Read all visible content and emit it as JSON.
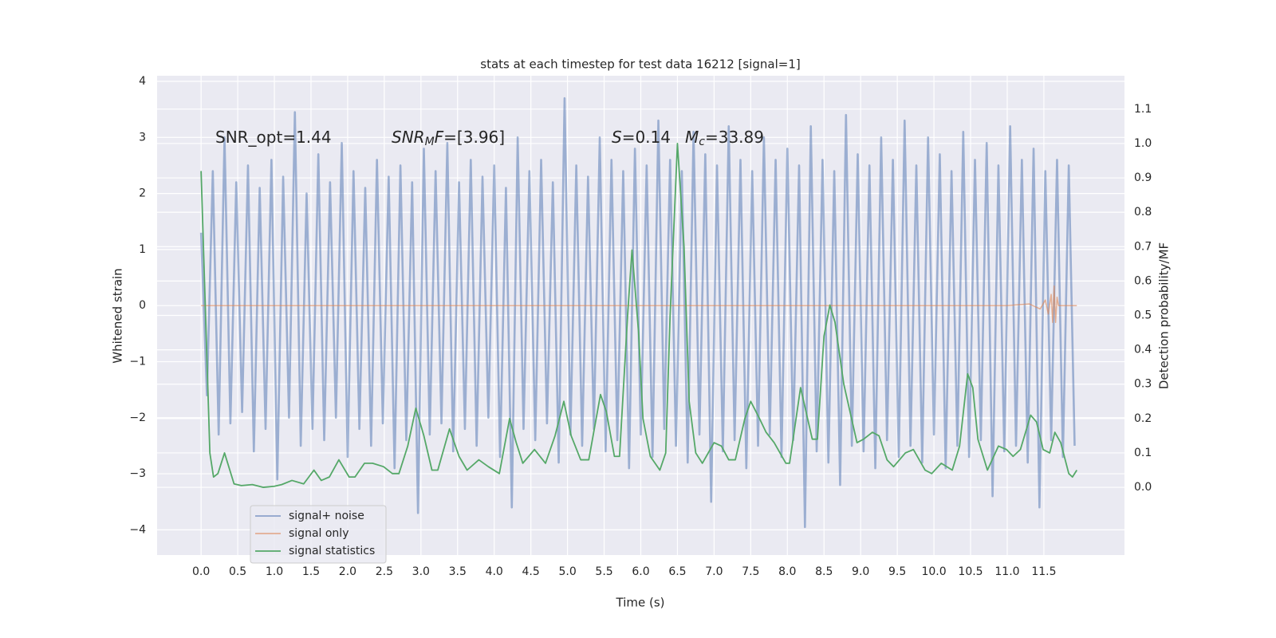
{
  "chart_data": {
    "type": "line",
    "title": "stats at each timestep for test data 16212 [signal=1]",
    "xlabel": "Time (s)",
    "ylabel": "Whitened strain",
    "y2label": "Detection probability/MF",
    "xlim": [
      -0.6,
      12.6
    ],
    "ylim": [
      -4.45,
      4.1
    ],
    "y2lim": [
      -0.197,
      1.197
    ],
    "xticks": [
      {
        "value": 0,
        "label": "0.0"
      },
      0.5,
      {
        "value": 1,
        "label": "1.0"
      },
      1.5,
      {
        "value": 2,
        "label": "2.0"
      },
      2.5,
      {
        "value": 3,
        "label": "3.0"
      },
      3.5,
      {
        "value": 4,
        "label": "4.0"
      },
      4.5,
      {
        "value": 5,
        "label": "5.0"
      },
      5.5,
      {
        "value": 6,
        "label": "6.0"
      },
      6.5,
      {
        "value": 7,
        "label": "7.0"
      },
      7.5,
      {
        "value": 8,
        "label": "8.0"
      },
      8.5,
      {
        "value": 9,
        "label": "9.0"
      },
      9.5,
      {
        "value": 10,
        "label": "10.0"
      },
      10.5,
      {
        "value": 11,
        "label": "11.0"
      },
      11.5
    ],
    "yticks": [
      {
        "value": -4,
        "label": "−4"
      },
      {
        "value": -3,
        "label": "−3"
      },
      {
        "value": -2,
        "label": "−2"
      },
      {
        "value": -1,
        "label": "−1"
      },
      0,
      1,
      2,
      3,
      4
    ],
    "y2ticks": [
      {
        "value": 0,
        "label": "0.0"
      },
      0.1,
      0.2,
      0.3,
      0.4,
      0.5,
      0.6,
      0.7,
      0.8,
      0.9,
      {
        "value": 1,
        "label": "1.0"
      },
      1.1
    ],
    "grid": true,
    "legend": "lower left",
    "annotations": [
      [
        {
          "text": "SNR_opt=1.44",
          "style": "plain"
        }
      ],
      [
        {
          "text": "SNR",
          "style": "italic"
        },
        {
          "text": "M",
          "style": "sub"
        },
        {
          "text": "F",
          "style": "italic"
        },
        {
          "text": "=[3.96]",
          "style": "plain"
        }
      ],
      [
        {
          "text": "S",
          "style": "italic"
        },
        {
          "text": "=0.14",
          "style": "plain"
        }
      ],
      [
        {
          "text": "M",
          "style": "italic"
        },
        {
          "text": "c",
          "style": "sub"
        },
        {
          "text": "=33.89",
          "style": "plain"
        }
      ]
    ],
    "series": [
      {
        "name": "signal+ noise",
        "color": "#4c72b0",
        "axis": "y",
        "x": [
          0,
          0.08,
          0.16,
          0.24,
          0.32,
          0.4,
          0.48,
          0.56,
          0.64,
          0.72,
          0.8,
          0.88,
          0.96,
          1.04,
          1.12,
          1.2,
          1.28,
          1.36,
          1.44,
          1.52,
          1.6,
          1.68,
          1.76,
          1.84,
          1.92,
          2,
          2.08,
          2.16,
          2.24,
          2.32,
          2.4,
          2.48,
          2.56,
          2.64,
          2.72,
          2.8,
          2.88,
          2.96,
          3.04,
          3.12,
          3.2,
          3.28,
          3.36,
          3.44,
          3.52,
          3.6,
          3.68,
          3.76,
          3.84,
          3.92,
          4,
          4.08,
          4.16,
          4.24,
          4.32,
          4.4,
          4.48,
          4.56,
          4.64,
          4.72,
          4.8,
          4.88,
          4.96,
          5.04,
          5.12,
          5.2,
          5.28,
          5.36,
          5.44,
          5.52,
          5.6,
          5.68,
          5.76,
          5.84,
          5.92,
          6,
          6.08,
          6.16,
          6.24,
          6.32,
          6.4,
          6.48,
          6.56,
          6.64,
          6.72,
          6.8,
          6.88,
          6.96,
          7.04,
          7.12,
          7.2,
          7.28,
          7.36,
          7.44,
          7.52,
          7.6,
          7.68,
          7.76,
          7.84,
          7.92,
          8,
          8.08,
          8.16,
          8.24,
          8.32,
          8.4,
          8.48,
          8.56,
          8.64,
          8.72,
          8.8,
          8.88,
          8.96,
          9.04,
          9.12,
          9.2,
          9.28,
          9.36,
          9.44,
          9.52,
          9.6,
          9.68,
          9.76,
          9.84,
          9.92,
          10,
          10.08,
          10.16,
          10.24,
          10.32,
          10.4,
          10.48,
          10.56,
          10.64,
          10.72,
          10.8,
          10.88,
          10.96,
          11.04,
          11.12,
          11.2,
          11.28,
          11.36,
          11.44,
          11.52,
          11.6,
          11.68,
          11.76,
          11.84,
          11.92
        ],
        "values": [
          1.3,
          -1.6,
          2.4,
          -2.3,
          3.0,
          -2.1,
          2.2,
          -1.9,
          2.5,
          -2.6,
          2.1,
          -2.2,
          2.6,
          -3.1,
          2.3,
          -2.0,
          3.45,
          -2.5,
          2.0,
          -2.2,
          2.7,
          -2.4,
          2.2,
          -2.0,
          2.9,
          -2.7,
          2.4,
          -2.2,
          2.1,
          -2.5,
          2.6,
          -2.1,
          2.3,
          -2.9,
          2.5,
          -2.4,
          2.2,
          -3.7,
          2.8,
          -2.3,
          2.4,
          -2.1,
          2.9,
          -2.6,
          2.2,
          -2.2,
          2.6,
          -2.5,
          2.3,
          -2.0,
          2.5,
          -2.7,
          2.1,
          -3.6,
          3.0,
          -2.2,
          2.4,
          -2.4,
          2.6,
          -2.1,
          2.2,
          -2.8,
          3.7,
          -2.3,
          2.5,
          -2.5,
          2.3,
          -2.2,
          3.0,
          -2.6,
          2.6,
          -2.4,
          2.4,
          -2.9,
          2.8,
          -2.3,
          2.5,
          -2.7,
          3.3,
          -2.2,
          2.6,
          -2.5,
          2.4,
          -2.8,
          3.1,
          -2.3,
          2.7,
          -3.5,
          2.5,
          -2.6,
          3.2,
          -2.4,
          2.6,
          -2.9,
          2.4,
          -2.5,
          3.0,
          -2.3,
          2.6,
          -2.7,
          2.8,
          -2.4,
          2.5,
          -3.95,
          3.2,
          -2.6,
          2.6,
          -2.8,
          2.4,
          -3.2,
          3.4,
          -2.5,
          2.7,
          -2.6,
          2.5,
          -2.9,
          3.0,
          -2.4,
          2.6,
          -2.7,
          3.3,
          -2.5,
          2.5,
          -2.8,
          3.0,
          -2.3,
          2.7,
          -2.9,
          2.4,
          -2.5,
          3.1,
          -2.7,
          2.6,
          -2.4,
          2.9,
          -3.4,
          2.5,
          -2.6,
          3.2,
          -2.5,
          2.6,
          -2.8,
          2.8,
          -3.6,
          2.4,
          -2.4,
          2.6,
          -2.7,
          2.5,
          -2.5
        ]
      },
      {
        "name": "signal only",
        "color": "#dd8452",
        "axis": "y",
        "x": [
          0,
          11.0,
          11.3,
          11.45,
          11.52,
          11.56,
          11.6,
          11.62,
          11.64,
          11.66,
          11.68,
          11.7,
          11.95
        ],
        "values": [
          0,
          0,
          0.03,
          -0.06,
          0.1,
          -0.15,
          0.2,
          -0.3,
          0.35,
          -0.3,
          0.15,
          0,
          0
        ]
      },
      {
        "name": "signal statistics",
        "color": "#55a868",
        "axis": "y2",
        "x": [
          0,
          0.12,
          0.17,
          0.23,
          0.32,
          0.45,
          0.55,
          0.7,
          0.85,
          1.0,
          1.1,
          1.24,
          1.4,
          1.54,
          1.64,
          1.75,
          1.88,
          2.02,
          2.1,
          2.23,
          2.34,
          2.49,
          2.61,
          2.7,
          2.82,
          2.93,
          3.04,
          3.15,
          3.23,
          3.39,
          3.52,
          3.63,
          3.79,
          3.92,
          4.07,
          4.21,
          4.3,
          4.39,
          4.55,
          4.7,
          4.83,
          4.95,
          5.05,
          5.18,
          5.29,
          5.45,
          5.53,
          5.64,
          5.71,
          5.82,
          5.88,
          5.97,
          6.03,
          6.13,
          6.26,
          6.34,
          6.4,
          6.5,
          6.59,
          6.66,
          6.75,
          6.84,
          7.0,
          7.1,
          7.2,
          7.29,
          7.42,
          7.5,
          7.62,
          7.71,
          7.82,
          7.98,
          8.03,
          8.18,
          8.34,
          8.41,
          8.5,
          8.58,
          8.65,
          8.77,
          8.95,
          9.04,
          9.16,
          9.25,
          9.36,
          9.45,
          9.61,
          9.72,
          9.88,
          9.97,
          10.1,
          10.25,
          10.35,
          10.46,
          10.53,
          10.6,
          10.73,
          10.88,
          10.99,
          11.08,
          11.18,
          11.32,
          11.4,
          11.49,
          11.58,
          11.65,
          11.73,
          11.84,
          11.89,
          11.95
        ],
        "values": [
          0.92,
          0.1,
          0.03,
          0.04,
          0.1,
          0.01,
          0.005,
          0.008,
          0,
          0.003,
          0.008,
          0.02,
          0.01,
          0.05,
          0.02,
          0.03,
          0.08,
          0.03,
          0.03,
          0.07,
          0.07,
          0.06,
          0.04,
          0.04,
          0.12,
          0.23,
          0.15,
          0.05,
          0.05,
          0.17,
          0.09,
          0.05,
          0.08,
          0.06,
          0.04,
          0.2,
          0.13,
          0.07,
          0.11,
          0.07,
          0.15,
          0.25,
          0.15,
          0.08,
          0.08,
          0.27,
          0.22,
          0.09,
          0.09,
          0.5,
          0.69,
          0.45,
          0.2,
          0.09,
          0.05,
          0.1,
          0.5,
          1.0,
          0.7,
          0.25,
          0.1,
          0.07,
          0.13,
          0.12,
          0.08,
          0.08,
          0.2,
          0.25,
          0.2,
          0.16,
          0.13,
          0.07,
          0.07,
          0.29,
          0.14,
          0.14,
          0.44,
          0.53,
          0.48,
          0.3,
          0.13,
          0.14,
          0.16,
          0.15,
          0.08,
          0.06,
          0.1,
          0.11,
          0.05,
          0.04,
          0.07,
          0.05,
          0.12,
          0.33,
          0.29,
          0.14,
          0.05,
          0.12,
          0.11,
          0.09,
          0.11,
          0.21,
          0.19,
          0.11,
          0.1,
          0.16,
          0.13,
          0.04,
          0.03,
          0.05
        ]
      }
    ]
  }
}
